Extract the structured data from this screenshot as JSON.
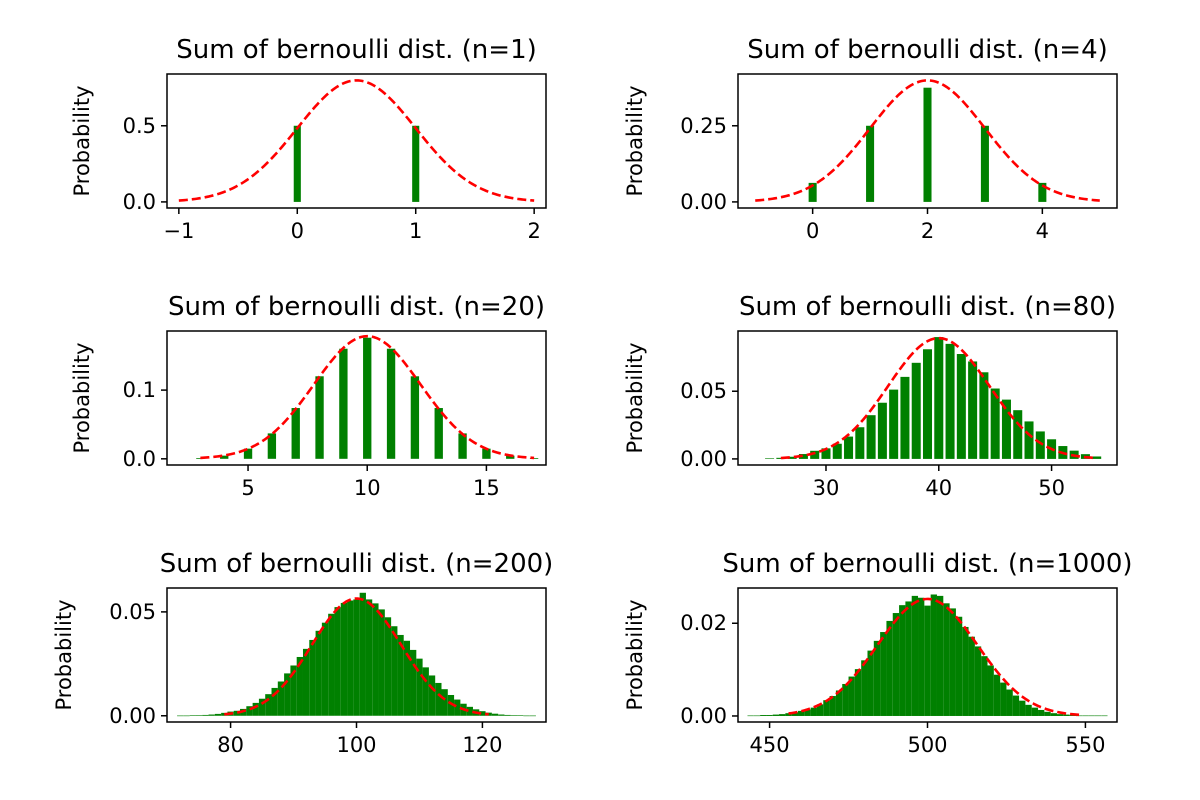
{
  "figure": {
    "background": "#ffffff",
    "bar_color": "#008000",
    "curve_color": "#ff0000"
  },
  "chart_data": [
    {
      "type": "bar",
      "title": "Sum of bernoulli dist. (n=1)",
      "ylabel": "Probability",
      "xlim": [
        -1.1,
        2.1
      ],
      "ylim": [
        -0.04,
        0.84
      ],
      "xticks": [
        -1,
        0,
        1,
        2
      ],
      "xticklabels": [
        "−1",
        "0",
        "1",
        "2"
      ],
      "yticks": [
        0.0,
        0.5
      ],
      "yticklabels": [
        "0.0",
        "0.5"
      ],
      "bar_width": 0.06,
      "bars": {
        "x": [
          0,
          1
        ],
        "y": [
          0.5,
          0.5
        ]
      },
      "normal_curve": {
        "mean": 0.5,
        "sd": 0.5,
        "x_range": [
          -1,
          2
        ],
        "style": "dashed"
      }
    },
    {
      "type": "bar",
      "title": "Sum of bernoulli dist. (n=4)",
      "ylabel": "Probability",
      "xlim": [
        -1.3,
        5.3
      ],
      "ylim": [
        -0.02,
        0.42
      ],
      "xticks": [
        0,
        2,
        4
      ],
      "xticklabels": [
        "0",
        "2",
        "4"
      ],
      "yticks": [
        0.0,
        0.25
      ],
      "yticklabels": [
        "0.00",
        "0.25"
      ],
      "bar_width": 0.14,
      "bars": {
        "x": [
          0,
          1,
          2,
          3,
          4
        ],
        "y": [
          0.0625,
          0.25,
          0.375,
          0.25,
          0.0625
        ]
      },
      "normal_curve": {
        "mean": 2,
        "sd": 1,
        "x_range": [
          -1,
          5
        ],
        "style": "dashed"
      }
    },
    {
      "type": "bar",
      "title": "Sum of bernoulli dist. (n=20)",
      "ylabel": "Probability",
      "xlim": [
        1.6,
        17.5
      ],
      "ylim": [
        -0.009,
        0.186
      ],
      "xticks": [
        5,
        10,
        15
      ],
      "xticklabels": [
        "5",
        "10",
        "15"
      ],
      "yticks": [
        0.0,
        0.1
      ],
      "yticklabels": [
        "0.0",
        "0.1"
      ],
      "bar_width": 0.35,
      "bars": {
        "x": [
          3,
          4,
          5,
          6,
          7,
          8,
          9,
          10,
          11,
          12,
          13,
          14,
          15,
          16,
          17
        ],
        "y": [
          0.0011,
          0.0046,
          0.0148,
          0.037,
          0.0739,
          0.1201,
          0.1602,
          0.1762,
          0.1602,
          0.1201,
          0.0739,
          0.037,
          0.0148,
          0.0046,
          0.0011
        ]
      },
      "normal_curve": {
        "mean": 10,
        "sd": 2.236,
        "x_range": [
          3,
          17
        ],
        "style": "dashed"
      }
    },
    {
      "type": "bar",
      "title": "Sum of bernoulli dist. (n=80)",
      "ylabel": "Probability",
      "xlim": [
        22.2,
        55.8
      ],
      "ylim": [
        -0.0045,
        0.0945
      ],
      "xticks": [
        30,
        40,
        50
      ],
      "xticklabels": [
        "30",
        "40",
        "50"
      ],
      "yticks": [
        0.0,
        0.05
      ],
      "yticklabels": [
        "0.00",
        "0.05"
      ],
      "bar_width": 0.8,
      "bars": {
        "x": [
          25,
          26,
          27,
          28,
          29,
          30,
          31,
          32,
          33,
          34,
          35,
          36,
          37,
          38,
          39,
          40,
          41,
          42,
          43,
          44,
          45,
          46,
          47,
          48,
          49,
          50,
          51,
          52,
          53,
          54
        ],
        "y": [
          0.0004,
          0.0008,
          0.0016,
          0.0036,
          0.006,
          0.0078,
          0.0112,
          0.0165,
          0.0234,
          0.0323,
          0.0415,
          0.0512,
          0.0606,
          0.071,
          0.081,
          0.09,
          0.085,
          0.0775,
          0.072,
          0.064,
          0.052,
          0.0438,
          0.036,
          0.0277,
          0.0203,
          0.0145,
          0.0095,
          0.0061,
          0.0035,
          0.0018
        ]
      },
      "normal_curve": {
        "mean": 40,
        "sd": 4.472,
        "x_range": [
          26,
          54
        ],
        "style": "dashed"
      }
    },
    {
      "type": "bar",
      "title": "Sum of bernoulli dist. (n=200)",
      "ylabel": "Probability",
      "xlim": [
        69.9,
        130.1
      ],
      "ylim": [
        -0.003,
        0.0615
      ],
      "xticks": [
        80,
        100,
        120
      ],
      "xticklabels": [
        "80",
        "100",
        "120"
      ],
      "yticks": [
        0.0,
        0.05
      ],
      "yticklabels": [
        "0.00",
        "0.05"
      ],
      "bar_width": 1.0,
      "bars": {
        "x": [
          72,
          73,
          74,
          75,
          76,
          77,
          78,
          79,
          80,
          81,
          82,
          83,
          84,
          85,
          86,
          87,
          88,
          89,
          90,
          91,
          92,
          93,
          94,
          95,
          96,
          97,
          98,
          99,
          100,
          101,
          102,
          103,
          104,
          105,
          106,
          107,
          108,
          109,
          110,
          111,
          112,
          113,
          114,
          115,
          116,
          117,
          118,
          119,
          120,
          121,
          122,
          123,
          124,
          125,
          126,
          127,
          128
        ],
        "y": [
          0.0001,
          0.0001,
          0.0002,
          0.0003,
          0.0004,
          0.0006,
          0.0009,
          0.0014,
          0.002,
          0.0024,
          0.0033,
          0.0046,
          0.0062,
          0.0082,
          0.0104,
          0.0134,
          0.0165,
          0.0204,
          0.0242,
          0.0283,
          0.0322,
          0.0365,
          0.0409,
          0.0448,
          0.0491,
          0.0523,
          0.0543,
          0.0555,
          0.056,
          0.0592,
          0.056,
          0.0541,
          0.0512,
          0.0474,
          0.0431,
          0.0389,
          0.0361,
          0.0317,
          0.0275,
          0.0233,
          0.0194,
          0.0158,
          0.0128,
          0.01,
          0.0078,
          0.0058,
          0.0043,
          0.0031,
          0.0022,
          0.0015,
          0.001,
          0.0006,
          0.0004,
          0.0003,
          0.0002,
          0.0001,
          0.0001
        ]
      },
      "normal_curve": {
        "mean": 100,
        "sd": 7.07,
        "x_range": [
          79,
          121
        ],
        "style": "dashed"
      }
    },
    {
      "type": "bar",
      "title": "Sum of bernoulli dist. (n=1000)",
      "ylabel": "Probability",
      "xlim": [
        440,
        560
      ],
      "ylim": [
        -0.0013,
        0.0276
      ],
      "xticks": [
        450,
        500,
        550
      ],
      "xticklabels": [
        "450",
        "500",
        "550"
      ],
      "yticks": [
        0.0,
        0.02
      ],
      "yticklabels": [
        "0.00",
        "0.02"
      ],
      "bar_width": 2.0,
      "bars": {
        "x": [
          444,
          446,
          448,
          450,
          452,
          454,
          456,
          458,
          460,
          462,
          464,
          466,
          468,
          470,
          472,
          474,
          476,
          478,
          480,
          482,
          484,
          486,
          488,
          490,
          492,
          494,
          496,
          498,
          500,
          502,
          504,
          506,
          508,
          510,
          512,
          514,
          516,
          518,
          520,
          522,
          524,
          526,
          528,
          530,
          532,
          534,
          536,
          538,
          540,
          542,
          544,
          546,
          548,
          550,
          552,
          554,
          556
        ],
        "y": [
          0.0001,
          0.0001,
          0.0002,
          0.0002,
          0.0003,
          0.0004,
          0.0006,
          0.0008,
          0.0011,
          0.0014,
          0.0018,
          0.0025,
          0.0034,
          0.0043,
          0.0055,
          0.0069,
          0.0085,
          0.0101,
          0.012,
          0.0141,
          0.0162,
          0.0181,
          0.0205,
          0.0222,
          0.0239,
          0.0247,
          0.0259,
          0.0255,
          0.0238,
          0.0262,
          0.0259,
          0.0243,
          0.0232,
          0.0214,
          0.0192,
          0.0171,
          0.015,
          0.0129,
          0.0109,
          0.0089,
          0.0072,
          0.0057,
          0.0044,
          0.0033,
          0.0024,
          0.0018,
          0.0013,
          0.0009,
          0.0006,
          0.0004,
          0.0003,
          0.0002,
          0.0001,
          0.0001,
          0.0001,
          0.0001,
          0.0001
        ]
      },
      "normal_curve": {
        "mean": 500,
        "sd": 15.81,
        "x_range": [
          456,
          548
        ],
        "style": "dashed"
      }
    }
  ]
}
